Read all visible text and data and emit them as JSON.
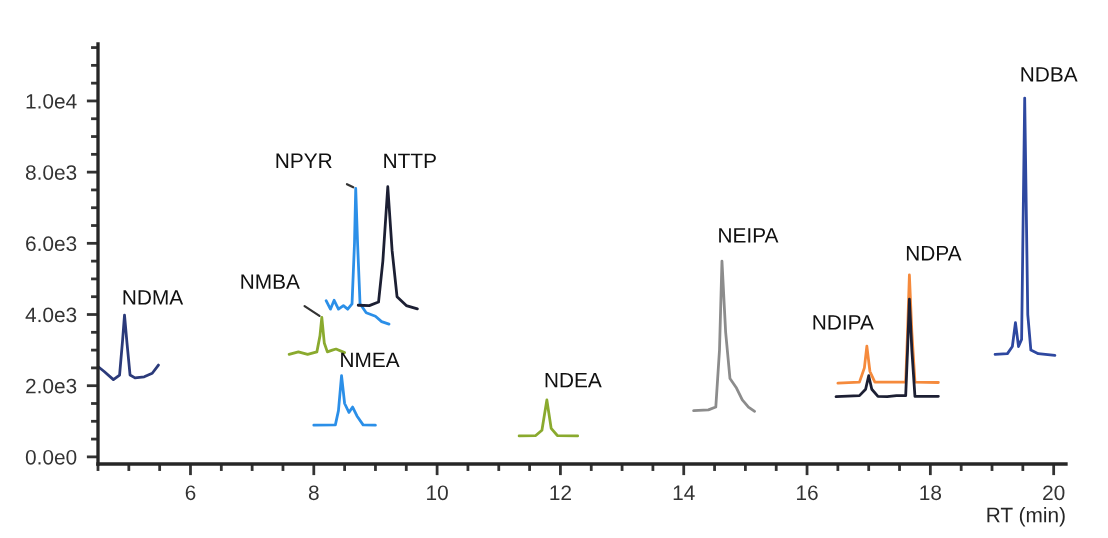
{
  "chart_data": {
    "type": "line",
    "xlabel": "RT (min)",
    "legend": false,
    "grid": false,
    "marker": "none",
    "line_style": "solid",
    "xlim": [
      4.5,
      20.2
    ],
    "xticks": [
      6,
      8,
      10,
      12,
      14,
      16,
      18,
      20
    ],
    "ylim": [
      -200,
      11600
    ],
    "yticks": [
      {
        "value": 0,
        "label": "0.0e0"
      },
      {
        "value": 2000,
        "label": "2.0e3"
      },
      {
        "value": 4000,
        "label": "4.0e3"
      },
      {
        "value": 6000,
        "label": "6.0e3"
      },
      {
        "value": 8000,
        "label": "8.0e3"
      },
      {
        "value": 10000,
        "label": "1.0e4"
      }
    ],
    "series": [
      {
        "color": "#2b3a7a",
        "x": [
          4.5,
          4.6,
          4.75,
          4.85,
          4.9,
          4.93,
          4.97,
          5.02,
          5.1,
          5.25,
          5.38,
          5.48
        ],
        "values": [
          2540,
          2400,
          2170,
          2300,
          3300,
          3980,
          3200,
          2300,
          2220,
          2250,
          2350,
          2580
        ]
      },
      {
        "color": "#8aaa2e",
        "x": [
          7.6,
          7.75,
          7.9,
          8.05,
          8.1,
          8.13,
          8.17,
          8.22,
          8.3,
          8.36,
          8.5
        ],
        "values": [
          2880,
          2950,
          2880,
          2950,
          3400,
          3920,
          3200,
          2950,
          3000,
          3030,
          2930
        ]
      },
      {
        "color": "#2b8fe8",
        "x": [
          8.0,
          8.35,
          8.4,
          8.45,
          8.5,
          8.57,
          8.63,
          8.7,
          8.8,
          9.0
        ],
        "values": [
          890,
          900,
          1300,
          2280,
          1500,
          1250,
          1400,
          1150,
          900,
          890
        ]
      },
      {
        "color": "#2b8fe8",
        "x": [
          8.2,
          8.27,
          8.33,
          8.4,
          8.48,
          8.55,
          8.62,
          8.66,
          8.68,
          8.71,
          8.75,
          8.85,
          9.0,
          9.1,
          9.22
        ],
        "values": [
          4390,
          4150,
          4400,
          4150,
          4250,
          4150,
          4300,
          6000,
          7540,
          6000,
          4300,
          4050,
          3950,
          3800,
          3730
        ]
      },
      {
        "color": "#1c1f33",
        "x": [
          8.72,
          8.9,
          9.05,
          9.12,
          9.2,
          9.27,
          9.35,
          9.5,
          9.68
        ],
        "values": [
          4260,
          4250,
          4350,
          5500,
          7590,
          5800,
          4500,
          4250,
          4160
        ]
      },
      {
        "color": "#8aaa2e",
        "x": [
          11.33,
          11.6,
          11.7,
          11.78,
          11.85,
          11.95,
          12.28
        ],
        "values": [
          590,
          600,
          750,
          1600,
          800,
          600,
          590
        ]
      },
      {
        "color": "#8c8c8c",
        "x": [
          14.16,
          14.4,
          14.52,
          14.58,
          14.62,
          14.68,
          14.75,
          14.85,
          14.95,
          15.05,
          15.15
        ],
        "values": [
          1300,
          1320,
          1400,
          3000,
          5500,
          3500,
          2200,
          1950,
          1600,
          1400,
          1280
        ]
      },
      {
        "color": "#f58a3c",
        "x": [
          16.5,
          16.85,
          16.93,
          16.97,
          17.02,
          17.1,
          17.6,
          17.63,
          17.66,
          17.7,
          17.75,
          18.13
        ],
        "values": [
          2070,
          2100,
          2500,
          3110,
          2400,
          2100,
          2100,
          3500,
          5110,
          3500,
          2100,
          2090
        ]
      },
      {
        "color": "#1c1f33",
        "x": [
          16.47,
          16.85,
          16.95,
          17.0,
          17.05,
          17.15,
          17.3,
          17.45,
          17.6,
          17.63,
          17.66,
          17.7,
          17.75,
          18.13
        ],
        "values": [
          1690,
          1720,
          1900,
          2280,
          1900,
          1700,
          1690,
          1720,
          1720,
          3000,
          4430,
          3000,
          1700,
          1700
        ]
      },
      {
        "color": "#2e48a0",
        "x": [
          19.05,
          19.25,
          19.33,
          19.38,
          19.43,
          19.48,
          19.53,
          19.58,
          19.63,
          19.75,
          20.02
        ],
        "values": [
          2880,
          2900,
          3100,
          3770,
          3100,
          3300,
          10080,
          4000,
          3000,
          2900,
          2850
        ]
      }
    ],
    "annotations": [
      {
        "text": "NDMA",
        "x": 4.93,
        "y": 3980
      },
      {
        "text": "NPYR",
        "x": 8.68,
        "y": 7540
      },
      {
        "text": "NTTP",
        "x": 9.2,
        "y": 7590
      },
      {
        "text": "NMBA",
        "x": 8.13,
        "y": 3920
      },
      {
        "text": "NMEA",
        "x": 8.45,
        "y": 2280
      },
      {
        "text": "NDEA",
        "x": 11.78,
        "y": 1600
      },
      {
        "text": "NEIPA",
        "x": 14.62,
        "y": 5500
      },
      {
        "text": "NDIPA",
        "x": 16.97,
        "y": 3110
      },
      {
        "text": "NDPA",
        "x": 17.66,
        "y": 5110
      },
      {
        "text": "NDBA",
        "x": 19.53,
        "y": 10080
      }
    ]
  }
}
